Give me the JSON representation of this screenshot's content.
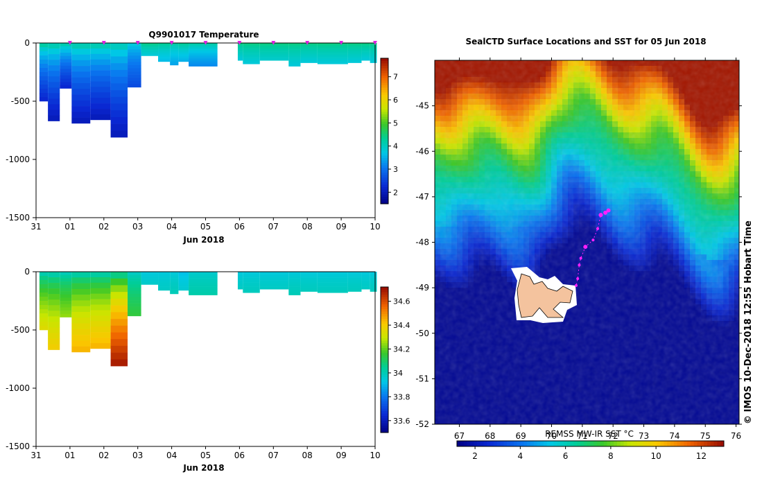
{
  "chart_data": [
    {
      "type": "heatmap",
      "title": "Q9901017  Temperature",
      "xlabel": "Jun 2018",
      "x_ticks": [
        "31",
        "01",
        "02",
        "03",
        "04",
        "05",
        "06",
        "07",
        "08",
        "09",
        "10"
      ],
      "y_ticks": [
        "0",
        "-500",
        "-1000",
        "-1500"
      ],
      "ylim": [
        -1500,
        0
      ],
      "xlim_days": [
        0,
        10
      ],
      "colorbar_ticks": [
        "2",
        "3",
        "4",
        "5",
        "6",
        "7"
      ],
      "colorbar_range": [
        1.5,
        7.8
      ],
      "marker_color": "#e020e0",
      "profile_markers_days": [
        1,
        2,
        3,
        4,
        5,
        6,
        7,
        8,
        9,
        10
      ],
      "profiles": [
        {
          "x0": 0.1,
          "x1": 0.35,
          "depth": 500,
          "surf": 4.6,
          "deep": 2.2
        },
        {
          "x0": 0.35,
          "x1": 0.7,
          "depth": 670,
          "surf": 4.5,
          "deep": 2.0
        },
        {
          "x0": 0.7,
          "x1": 1.05,
          "depth": 390,
          "surf": 4.5,
          "deep": 2.2
        },
        {
          "x0": 1.05,
          "x1": 1.6,
          "depth": 690,
          "surf": 4.5,
          "deep": 2.0
        },
        {
          "x0": 1.6,
          "x1": 2.2,
          "depth": 660,
          "surf": 4.5,
          "deep": 2.0
        },
        {
          "x0": 2.2,
          "x1": 2.7,
          "depth": 810,
          "surf": 4.4,
          "deep": 2.0
        },
        {
          "x0": 2.7,
          "x1": 3.1,
          "depth": 380,
          "surf": 4.0,
          "deep": 2.6
        },
        {
          "x0": 3.1,
          "x1": 3.6,
          "depth": 110,
          "surf": 4.6,
          "deep": 3.8
        },
        {
          "x0": 3.6,
          "x1": 3.95,
          "depth": 160,
          "surf": 4.5,
          "deep": 3.6
        },
        {
          "x0": 3.95,
          "x1": 4.2,
          "depth": 190,
          "surf": 4.4,
          "deep": 3.4
        },
        {
          "x0": 4.2,
          "x1": 4.5,
          "depth": 160,
          "surf": 4.5,
          "deep": 3.5
        },
        {
          "x0": 4.5,
          "x1": 5.35,
          "depth": 200,
          "surf": 4.4,
          "deep": 3.2
        },
        {
          "x0": 5.95,
          "x1": 6.1,
          "depth": 150,
          "surf": 4.6,
          "deep": 3.8
        },
        {
          "x0": 6.1,
          "x1": 6.6,
          "depth": 180,
          "surf": 4.6,
          "deep": 3.8
        },
        {
          "x0": 6.6,
          "x1": 7.45,
          "depth": 150,
          "surf": 4.6,
          "deep": 3.9
        },
        {
          "x0": 7.45,
          "x1": 7.8,
          "depth": 200,
          "surf": 4.6,
          "deep": 3.8
        },
        {
          "x0": 7.8,
          "x1": 8.3,
          "depth": 170,
          "surf": 4.6,
          "deep": 3.8
        },
        {
          "x0": 8.3,
          "x1": 9.2,
          "depth": 180,
          "surf": 4.6,
          "deep": 3.8
        },
        {
          "x0": 9.2,
          "x1": 9.6,
          "depth": 170,
          "surf": 4.6,
          "deep": 3.8
        },
        {
          "x0": 9.6,
          "x1": 9.85,
          "depth": 150,
          "surf": 4.6,
          "deep": 3.8
        },
        {
          "x0": 9.85,
          "x1": 10.05,
          "depth": 170,
          "surf": 4.6,
          "deep": 3.8
        }
      ]
    },
    {
      "type": "heatmap",
      "title": "",
      "xlabel": "Jun 2018",
      "x_ticks": [
        "31",
        "01",
        "02",
        "03",
        "04",
        "05",
        "06",
        "07",
        "08",
        "09",
        "10"
      ],
      "y_ticks": [
        "0",
        "-500",
        "-1000",
        "-1500"
      ],
      "ylim": [
        -1500,
        0
      ],
      "xlim_days": [
        0,
        10
      ],
      "colorbar_ticks": [
        "33.6",
        "33.8",
        "34",
        "34.2",
        "34.4",
        "34.6"
      ],
      "colorbar_range": [
        33.5,
        34.72
      ],
      "profiles": [
        {
          "x0": 0.1,
          "x1": 0.35,
          "depth": 500,
          "surf": 33.95,
          "deep": 34.35
        },
        {
          "x0": 0.35,
          "x1": 0.7,
          "depth": 670,
          "surf": 33.95,
          "deep": 34.4
        },
        {
          "x0": 0.7,
          "x1": 1.05,
          "depth": 390,
          "surf": 33.95,
          "deep": 34.25
        },
        {
          "x0": 1.05,
          "x1": 1.6,
          "depth": 690,
          "surf": 33.95,
          "deep": 34.45
        },
        {
          "x0": 1.6,
          "x1": 2.2,
          "depth": 660,
          "surf": 33.95,
          "deep": 34.45
        },
        {
          "x0": 2.2,
          "x1": 2.7,
          "depth": 810,
          "surf": 33.95,
          "deep": 34.7
        },
        {
          "x0": 2.7,
          "x1": 3.1,
          "depth": 380,
          "surf": 33.95,
          "deep": 34.15
        },
        {
          "x0": 3.1,
          "x1": 3.6,
          "depth": 110,
          "surf": 33.93,
          "deep": 33.97
        },
        {
          "x0": 3.6,
          "x1": 3.95,
          "depth": 160,
          "surf": 33.93,
          "deep": 33.98
        },
        {
          "x0": 3.95,
          "x1": 4.2,
          "depth": 190,
          "surf": 33.93,
          "deep": 34.0
        },
        {
          "x0": 4.2,
          "x1": 4.5,
          "depth": 160,
          "surf": 33.9,
          "deep": 33.96
        },
        {
          "x0": 4.5,
          "x1": 5.35,
          "depth": 200,
          "surf": 33.95,
          "deep": 34.02
        },
        {
          "x0": 5.95,
          "x1": 6.1,
          "depth": 150,
          "surf": 33.93,
          "deep": 33.98
        },
        {
          "x0": 6.1,
          "x1": 6.6,
          "depth": 180,
          "surf": 33.93,
          "deep": 33.99
        },
        {
          "x0": 6.6,
          "x1": 7.45,
          "depth": 150,
          "surf": 33.93,
          "deep": 33.98
        },
        {
          "x0": 7.45,
          "x1": 7.8,
          "depth": 200,
          "surf": 33.93,
          "deep": 34.0
        },
        {
          "x0": 7.8,
          "x1": 8.3,
          "depth": 170,
          "surf": 33.93,
          "deep": 33.99
        },
        {
          "x0": 8.3,
          "x1": 9.2,
          "depth": 180,
          "surf": 33.93,
          "deep": 33.99
        },
        {
          "x0": 9.2,
          "x1": 9.6,
          "depth": 170,
          "surf": 33.93,
          "deep": 33.99
        },
        {
          "x0": 9.6,
          "x1": 9.85,
          "depth": 150,
          "surf": 33.93,
          "deep": 33.98
        },
        {
          "x0": 9.85,
          "x1": 10.05,
          "depth": 170,
          "surf": 33.93,
          "deep": 33.99
        }
      ]
    },
    {
      "type": "heatmap",
      "title": "SealCTD Surface Locations and SST for 05 Jun 2018",
      "x_ticks": [
        "67",
        "68",
        "69",
        "70",
        "71",
        "72",
        "73",
        "74",
        "75",
        "76"
      ],
      "y_ticks": [
        "-45",
        "-46",
        "-47",
        "-48",
        "-49",
        "-50",
        "-51",
        "-52"
      ],
      "xlim": [
        66.2,
        76.1
      ],
      "ylim": [
        -52.0,
        -44.0
      ],
      "colorbar_label": "REMSS MW-IR SST °C",
      "colorbar_ticks": [
        "2",
        "4",
        "6",
        "8",
        "10",
        "12"
      ],
      "colorbar_range": [
        1.2,
        13.0
      ],
      "side_label": "© IMOS 10-Dec-2018 12:55 Hobart Time",
      "track_lon_lat": [
        [
          71.85,
          -47.3
        ],
        [
          71.75,
          -47.35
        ],
        [
          71.6,
          -47.4
        ],
        [
          71.5,
          -47.7
        ],
        [
          71.35,
          -47.95
        ],
        [
          71.1,
          -48.1
        ],
        [
          70.95,
          -48.35
        ],
        [
          70.9,
          -48.5
        ],
        [
          70.85,
          -48.8
        ],
        [
          70.8,
          -48.95
        ]
      ],
      "track_color": "#ff20ff",
      "island_color": "#f4c39e"
    }
  ]
}
